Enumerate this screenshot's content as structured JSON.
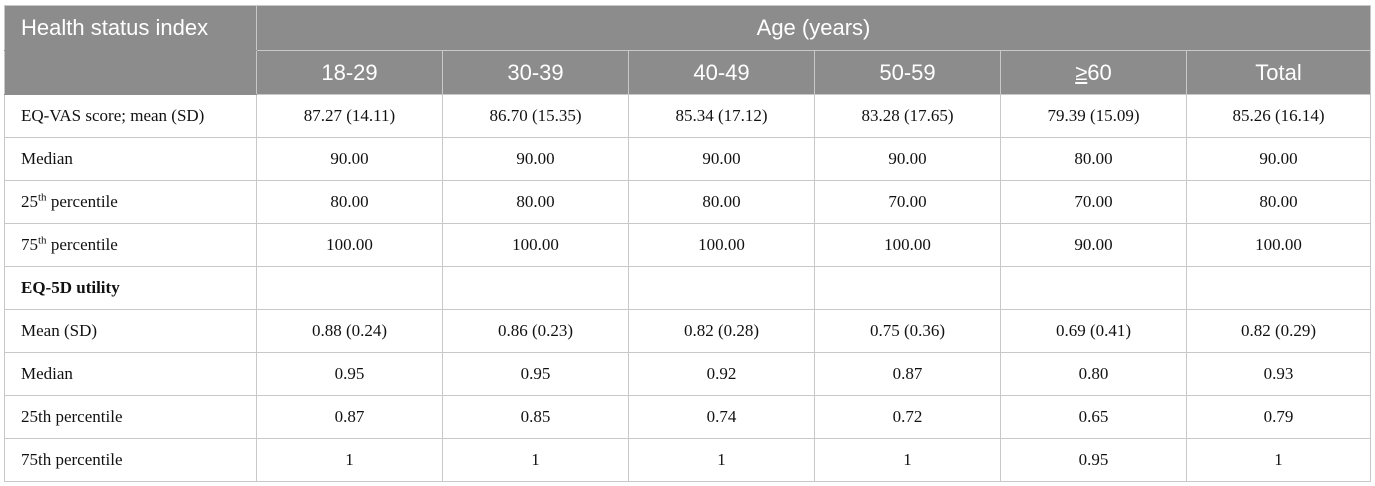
{
  "table": {
    "corner_header": "Health status index",
    "group_header": "Age (years)",
    "age_groups": [
      "18-29",
      "30-39",
      "40-49",
      "50-59",
      "60",
      "Total"
    ],
    "age_ge_symbol": "≥",
    "rows": [
      {
        "label": "EQ-VAS score; mean (SD)",
        "values": [
          "87.27 (14.11)",
          "86.70 (15.35)",
          "85.34 (17.12)",
          "83.28 (17.65)",
          "79.39 (15.09)",
          "85.26 (16.14)"
        ]
      },
      {
        "label": "Median",
        "values": [
          "90.00",
          "90.00",
          "90.00",
          "90.00",
          "80.00",
          "90.00"
        ]
      },
      {
        "label_prefix": "25",
        "label_sup": "th",
        "label_suffix": " percentile",
        "values": [
          "80.00",
          "80.00",
          "80.00",
          "70.00",
          "70.00",
          "80.00"
        ]
      },
      {
        "label_prefix": "75",
        "label_sup": "th",
        "label_suffix": " percentile",
        "values": [
          "100.00",
          "100.00",
          "100.00",
          "100.00",
          "90.00",
          "100.00"
        ]
      },
      {
        "label": "EQ-5D utility",
        "section": true,
        "values": [
          "",
          "",
          "",
          "",
          "",
          ""
        ]
      },
      {
        "label": "Mean (SD)",
        "values": [
          "0.88 (0.24)",
          "0.86 (0.23)",
          "0.82 (0.28)",
          "0.75 (0.36)",
          "0.69 (0.41)",
          "0.82 (0.29)"
        ]
      },
      {
        "label": "Median",
        "values": [
          "0.95",
          "0.95",
          "0.92",
          "0.87",
          "0.80",
          "0.93"
        ]
      },
      {
        "label": "25th percentile",
        "values": [
          "0.87",
          "0.85",
          "0.74",
          "0.72",
          "0.65",
          "0.79"
        ]
      },
      {
        "label": "75th percentile",
        "values": [
          "1",
          "1",
          "1",
          "1",
          "0.95",
          "1"
        ]
      }
    ]
  }
}
